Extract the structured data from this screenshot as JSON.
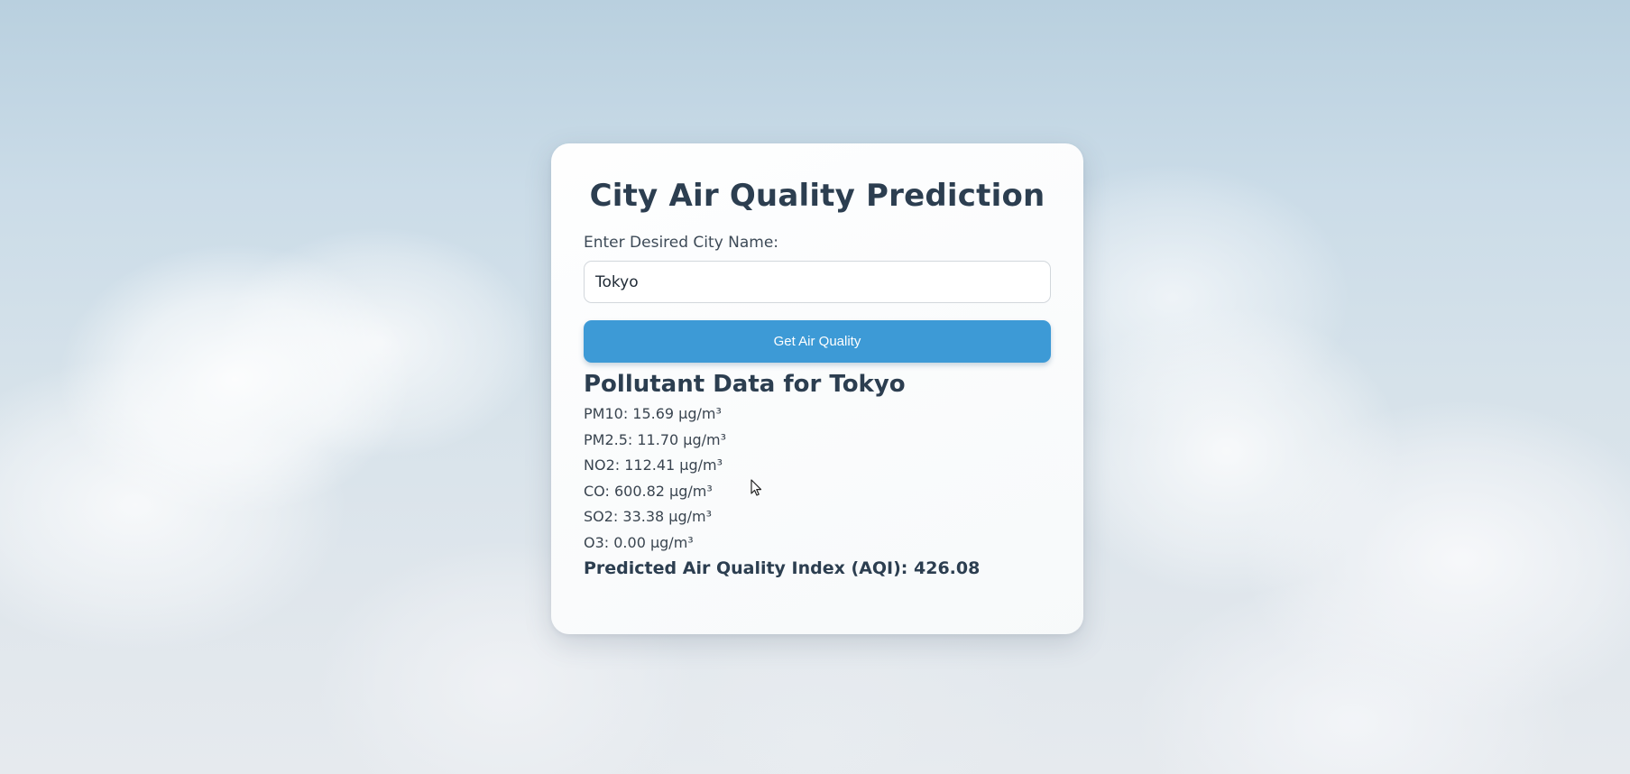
{
  "page": {
    "title": "City Air Quality Prediction"
  },
  "form": {
    "label": "Enter Desired City Name:",
    "city_value": "Tokyo",
    "button_label": "Get Air Quality"
  },
  "results": {
    "heading": "Pollutant Data for Tokyo",
    "pollutants": [
      "PM10: 15.69 µg/m³",
      "PM2.5: 11.70 µg/m³",
      "NO2: 112.41 µg/m³",
      "CO: 600.82 µg/m³",
      "SO2: 33.38 µg/m³",
      "O3: 0.00 µg/m³"
    ],
    "aqi": "Predicted Air Quality Index (AQI): 426.08"
  },
  "colors": {
    "accent": "#3d9ad6",
    "heading": "#2c3e50"
  }
}
